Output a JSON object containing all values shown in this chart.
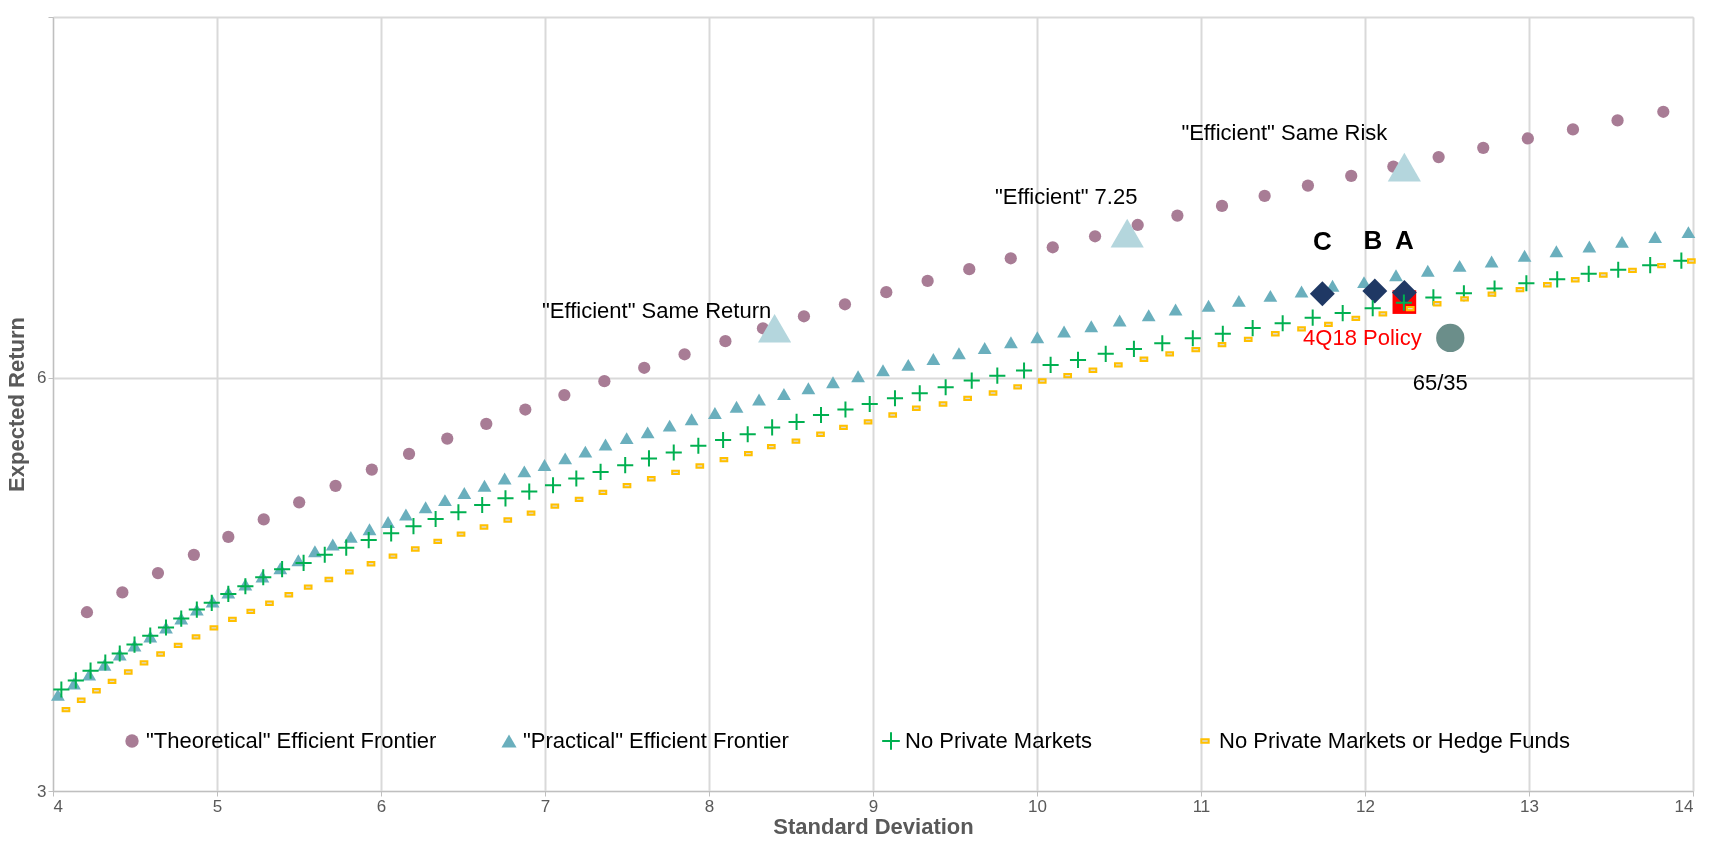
{
  "chart_data": {
    "type": "scatter",
    "xlabel": "Standard Deviation",
    "ylabel": "Expected Return",
    "xlim": [
      4,
      14
    ],
    "ylim": [
      3,
      8.62
    ],
    "xticks": [
      4,
      5,
      6,
      7,
      8,
      9,
      10,
      11,
      12,
      13,
      14
    ],
    "yticks": [
      3,
      6,
      {
        "value": 8.62,
        "label": null
      }
    ],
    "grid": true,
    "legend": "bottom",
    "series": [
      {
        "name": "\"Theoretical\" Efficient Frontier",
        "color": "#a87c95",
        "marker": "circle",
        "x": [
          4.207,
          4.423,
          4.64,
          4.859,
          5.069,
          5.285,
          5.501,
          5.723,
          5.944,
          6.171,
          6.404,
          6.642,
          6.88,
          7.118,
          7.362,
          7.605,
          7.851,
          8.1,
          8.329,
          8.579,
          8.829,
          9.081,
          9.333,
          9.587,
          9.84,
          10.096,
          10.354,
          10.614,
          10.856,
          11.128,
          11.388,
          11.652,
          11.916,
          12.173,
          12.449,
          12.721,
          12.993,
          13.268,
          13.54,
          13.819
        ],
        "values": [
          4.298,
          4.442,
          4.582,
          4.715,
          4.845,
          4.972,
          5.096,
          5.216,
          5.334,
          5.448,
          5.559,
          5.666,
          5.77,
          5.875,
          5.976,
          6.073,
          6.171,
          6.266,
          6.36,
          6.447,
          6.534,
          6.622,
          6.704,
          6.789,
          6.868,
          6.948,
          7.028,
          7.11,
          7.178,
          7.248,
          7.321,
          7.396,
          7.466,
          7.534,
          7.603,
          7.67,
          7.738,
          7.804,
          7.869,
          7.932
        ]
      },
      {
        "name": "\"Practical\" Efficient Frontier",
        "color": "#6aafbd",
        "marker": "triangle",
        "x": [
          4.03,
          4.128,
          4.221,
          4.314,
          4.407,
          4.497,
          4.593,
          4.689,
          4.782,
          4.877,
          4.973,
          5.069,
          5.173,
          5.277,
          5.386,
          5.496,
          5.597,
          5.706,
          5.816,
          5.93,
          6.043,
          6.152,
          6.272,
          6.39,
          6.508,
          6.631,
          6.754,
          6.874,
          6.997,
          7.123,
          7.246,
          7.369,
          7.498,
          7.626,
          7.76,
          7.894,
          8.036,
          8.168,
          8.305,
          8.457,
          8.606,
          8.756,
          8.909,
          9.061,
          9.215,
          9.368,
          9.524,
          9.681,
          9.841,
          10.002,
          10.165,
          10.331,
          10.504,
          10.681,
          10.845,
          11.046,
          11.231,
          11.423,
          11.613,
          11.802,
          11.994,
          12.189,
          12.383,
          12.577,
          12.772,
          12.973,
          13.167,
          13.368,
          13.567,
          13.769,
          13.972
        ],
        "values": [
          3.698,
          3.78,
          3.845,
          3.917,
          3.991,
          4.057,
          4.122,
          4.187,
          4.252,
          4.317,
          4.376,
          4.441,
          4.5,
          4.558,
          4.617,
          4.676,
          4.741,
          4.79,
          4.845,
          4.901,
          4.953,
          5.008,
          5.06,
          5.112,
          5.164,
          5.217,
          5.269,
          5.321,
          5.367,
          5.415,
          5.464,
          5.516,
          5.562,
          5.604,
          5.653,
          5.699,
          5.745,
          5.79,
          5.842,
          5.883,
          5.924,
          5.968,
          6.011,
          6.055,
          6.094,
          6.137,
          6.178,
          6.217,
          6.258,
          6.295,
          6.336,
          6.374,
          6.416,
          6.454,
          6.496,
          6.524,
          6.559,
          6.595,
          6.627,
          6.668,
          6.695,
          6.745,
          6.777,
          6.813,
          6.845,
          6.886,
          6.919,
          6.954,
          6.987,
          7.022,
          7.058
        ]
      },
      {
        "name": "No Private Markets",
        "color": "#00b050",
        "marker": "cross",
        "x": [
          4.051,
          4.139,
          4.229,
          4.319,
          4.407,
          4.497,
          4.593,
          4.689,
          4.782,
          4.877,
          4.968,
          5.069,
          5.173,
          5.282,
          5.397,
          5.528,
          5.657,
          5.788,
          5.925,
          6.062,
          6.198,
          6.333,
          6.472,
          6.617,
          6.759,
          6.904,
          7.049,
          7.191,
          7.339,
          7.489,
          7.634,
          7.785,
          7.935,
          8.086,
          8.236,
          8.385,
          8.534,
          8.683,
          8.832,
          8.98,
          9.134,
          9.285,
          9.443,
          9.602,
          9.758,
          9.921,
          10.083,
          10.25,
          10.419,
          10.591,
          10.764,
          10.95,
          11.133,
          11.315,
          11.498,
          11.681,
          11.864,
          12.047,
          12.237,
          12.417,
          12.603,
          12.79,
          12.984,
          13.172,
          13.364,
          13.544,
          13.739,
          13.929
        ],
        "values": [
          3.737,
          3.803,
          3.874,
          3.933,
          3.998,
          4.063,
          4.128,
          4.187,
          4.252,
          4.317,
          4.366,
          4.431,
          4.487,
          4.552,
          4.611,
          4.656,
          4.715,
          4.767,
          4.822,
          4.871,
          4.923,
          4.975,
          5.024,
          5.077,
          5.125,
          5.174,
          5.22,
          5.269,
          5.317,
          5.366,
          5.415,
          5.458,
          5.507,
          5.549,
          5.59,
          5.64,
          5.68,
          5.73,
          5.77,
          5.81,
          5.852,
          5.888,
          5.932,
          5.98,
          6.016,
          6.053,
          6.094,
          6.13,
          6.174,
          6.21,
          6.251,
          6.287,
          6.32,
          6.361,
          6.396,
          6.437,
          6.47,
          6.505,
          6.546,
          6.584,
          6.614,
          6.649,
          6.687,
          6.715,
          6.755,
          6.785,
          6.818,
          6.851
        ]
      },
      {
        "name": "No Private Markets or Hedge Funds",
        "color": "#ffc000",
        "marker": "square",
        "x": [
          4.079,
          4.172,
          4.265,
          4.36,
          4.459,
          4.555,
          4.656,
          4.763,
          4.872,
          4.981,
          5.094,
          5.206,
          5.32,
          5.438,
          5.556,
          5.682,
          5.807,
          5.939,
          6.073,
          6.209,
          6.346,
          6.488,
          6.628,
          6.773,
          6.915,
          7.06,
          7.208,
          7.353,
          7.5,
          7.648,
          7.796,
          7.944,
          8.091,
          8.24,
          8.38,
          8.53,
          8.68,
          8.82,
          8.97,
          9.12,
          9.264,
          9.427,
          9.577,
          9.732,
          9.882,
          10.032,
          10.187,
          10.341,
          10.496,
          10.652,
          10.809,
          10.968,
          11.128,
          11.288,
          11.453,
          11.613,
          11.777,
          11.944,
          12.109,
          12.276,
          12.44,
          12.607,
          12.774,
          12.945,
          13.112,
          13.282,
          13.453,
          13.631,
          13.808,
          13.99
        ],
        "values": [
          3.591,
          3.659,
          3.728,
          3.796,
          3.864,
          3.93,
          3.995,
          4.057,
          4.119,
          4.184,
          4.246,
          4.304,
          4.363,
          4.425,
          4.48,
          4.536,
          4.591,
          4.65,
          4.705,
          4.757,
          4.813,
          4.865,
          4.917,
          4.968,
          5.018,
          5.068,
          5.118,
          5.168,
          5.217,
          5.267,
          5.314,
          5.36,
          5.406,
          5.45,
          5.5,
          5.54,
          5.59,
          5.64,
          5.68,
          5.73,
          5.779,
          5.81,
          5.851,
          5.89,
          5.934,
          5.977,
          6.016,
          6.055,
          6.094,
          6.135,
          6.174,
          6.205,
          6.241,
          6.279,
          6.32,
          6.355,
          6.388,
          6.432,
          6.464,
          6.502,
          6.538,
          6.573,
          6.608,
          6.641,
          6.676,
          6.712,
          6.747,
          6.78,
          6.815,
          6.848
        ]
      },
      {
        "name": "\"Efficient\" Same Return",
        "color": "#b4d6dd",
        "marker": "triangle",
        "x": [
          8.4
        ],
        "values": [
          6.36
        ]
      },
      {
        "name": "\"Efficient\" 7.25",
        "color": "#b4d6dd",
        "marker": "triangle",
        "x": [
          10.55
        ],
        "values": [
          7.05
        ]
      },
      {
        "name": "\"Efficient\" Same Risk",
        "color": "#b4d6dd",
        "marker": "triangle",
        "x": [
          12.24
        ],
        "values": [
          7.53
        ]
      },
      {
        "name": "C",
        "color": "#1f3864",
        "marker": "diamond",
        "x": [
          11.74
        ],
        "values": [
          6.61
        ]
      },
      {
        "name": "B",
        "color": "#1f3864",
        "marker": "diamond",
        "x": [
          12.06
        ],
        "values": [
          6.63
        ]
      },
      {
        "name": "A",
        "color": "#1f3864",
        "marker": "diamond",
        "x": [
          12.24
        ],
        "values": [
          6.62
        ]
      },
      {
        "name": "4Q18 Policy",
        "color": "#ff0000",
        "marker": "square",
        "x": [
          12.24
        ],
        "values": [
          6.55
        ]
      },
      {
        "name": "65/35",
        "color": "#6b8e8a",
        "marker": "circle",
        "x": [
          12.52
        ],
        "values": [
          6.29
        ]
      }
    ]
  }
}
